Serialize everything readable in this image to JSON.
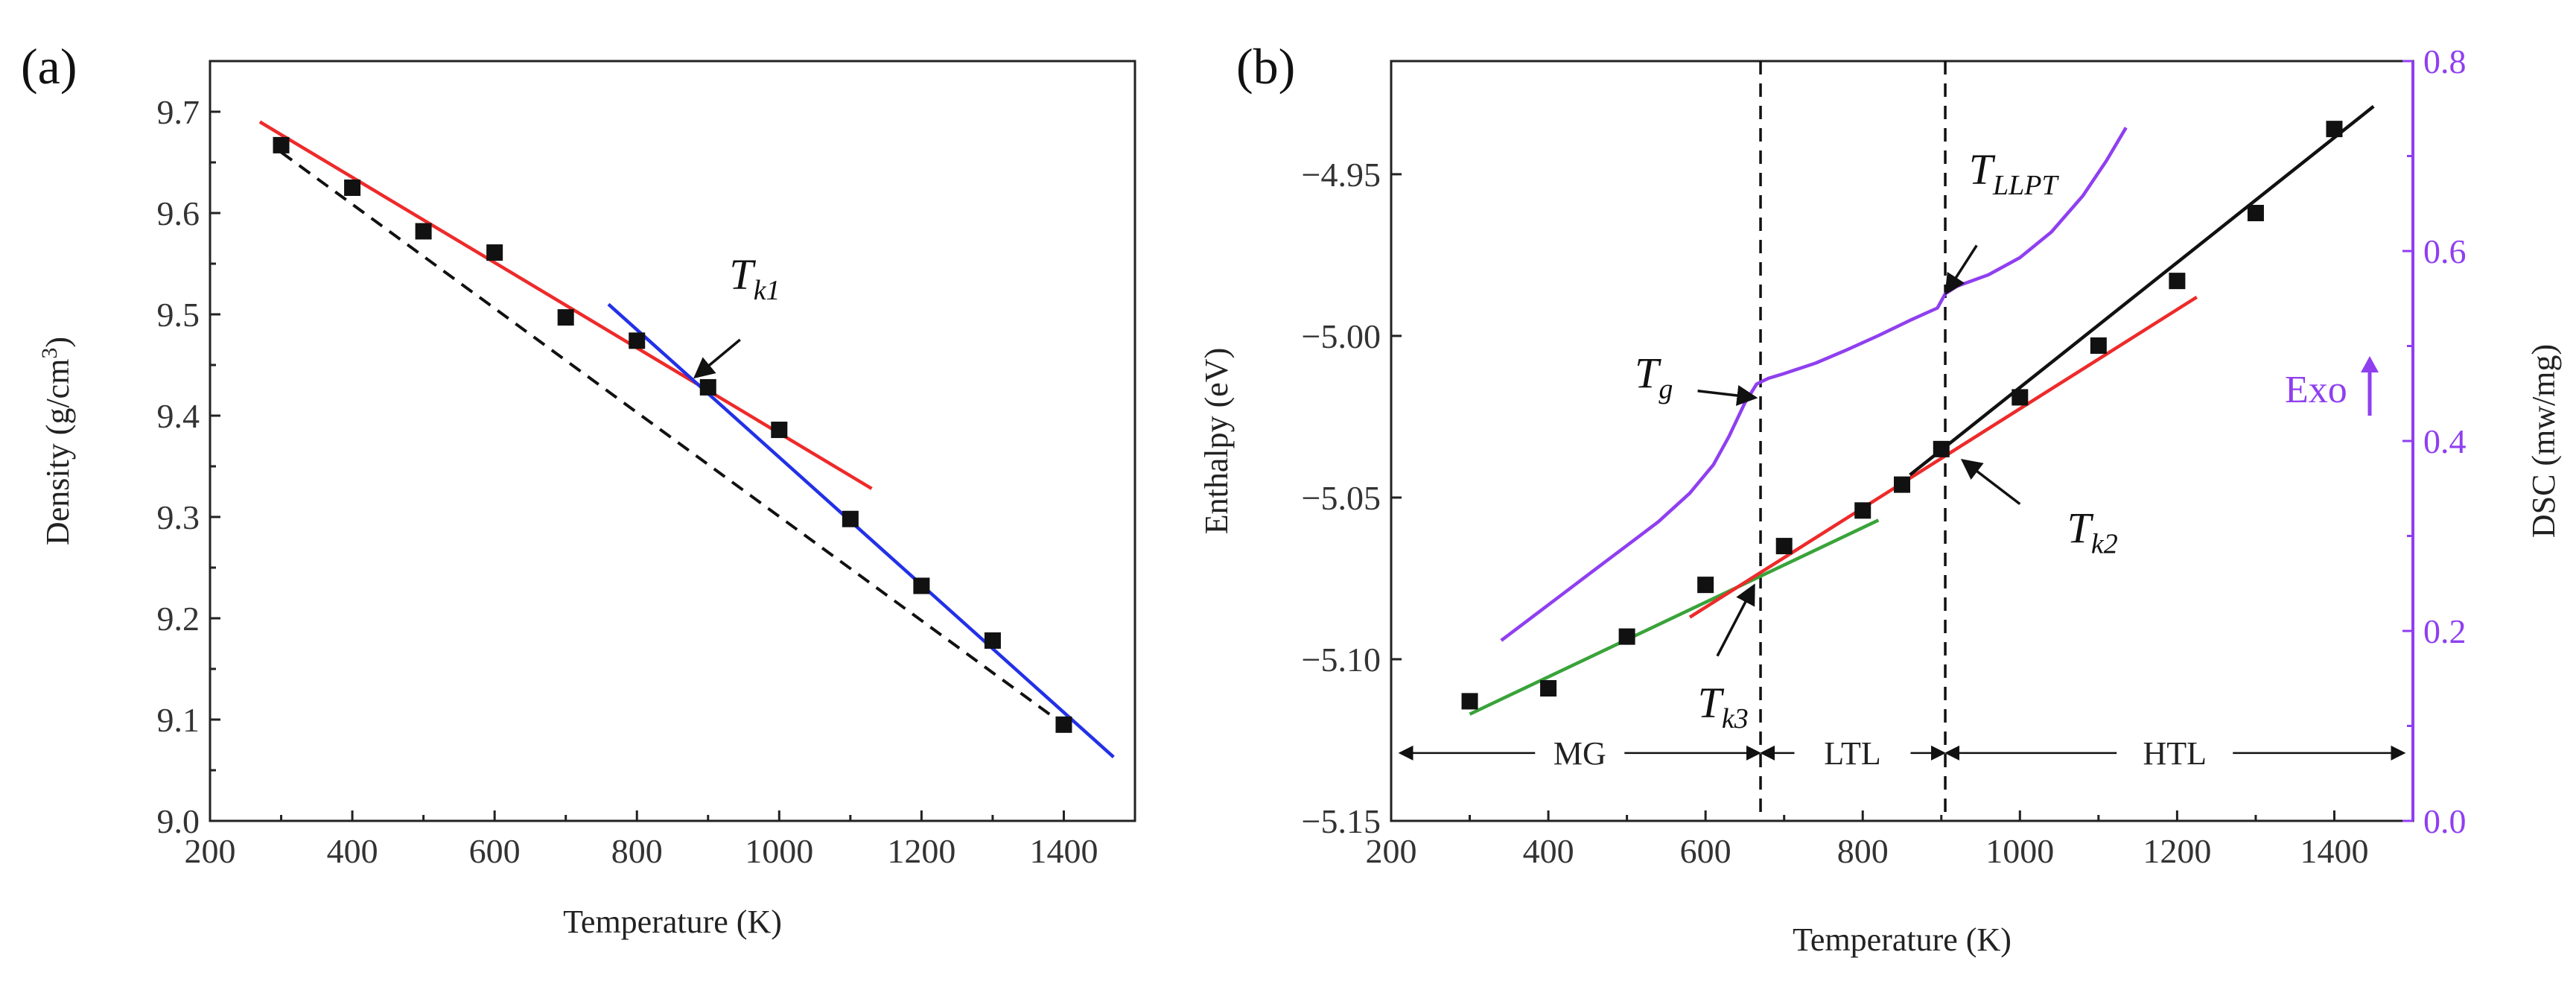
{
  "panels": {
    "a": {
      "label": "(a)"
    },
    "b": {
      "label": "(b)"
    }
  },
  "colors": {
    "red": "#ee2a2a",
    "blue": "#2231e6",
    "green": "#39a339",
    "black": "#111111",
    "purple": "#8f3ff0"
  },
  "chart_data": [
    {
      "id": "a",
      "type": "scatter",
      "title": "",
      "xlabel": "Temperature (K)",
      "ylabel_main": "Density (g/cm",
      "ylabel_sup": "3",
      "ylabel_end": ")",
      "xlim": [
        200,
        1500
      ],
      "ylim": [
        9.0,
        9.75
      ],
      "xticks": [
        200,
        400,
        600,
        800,
        1000,
        1200,
        1400
      ],
      "yticks": [
        9.0,
        9.1,
        9.2,
        9.3,
        9.4,
        9.5,
        9.6,
        9.7
      ],
      "ytick_labels": [
        "9.0",
        "9.1",
        "9.2",
        "9.3",
        "9.4",
        "9.5",
        "9.6",
        "9.7"
      ],
      "points": {
        "x": [
          300,
          400,
          500,
          600,
          700,
          800,
          900,
          1000,
          1100,
          1200,
          1300,
          1400
        ],
        "y": [
          9.667,
          9.625,
          9.582,
          9.561,
          9.497,
          9.474,
          9.428,
          9.386,
          9.298,
          9.232,
          9.178,
          9.095
        ]
      },
      "fit_lines": [
        {
          "name": "red-fit",
          "color": "#ee2a2a",
          "dash": false,
          "x": [
            270,
            1130
          ],
          "y": [
            9.69,
            9.328
          ]
        },
        {
          "name": "blue-fit",
          "color": "#2231e6",
          "dash": false,
          "x": [
            760,
            1470
          ],
          "y": [
            9.51,
            9.063
          ]
        },
        {
          "name": "dashed-reference",
          "color": "#111111",
          "dash": true,
          "x": [
            300,
            1400
          ],
          "y": [
            9.66,
            9.095
          ]
        }
      ],
      "annotations": [
        {
          "main": "T",
          "sub": "k1",
          "x": 930,
          "y": 9.525,
          "arrow_from": [
            945,
            9.475
          ],
          "arrow_to": [
            885,
            9.44
          ]
        }
      ]
    },
    {
      "id": "b",
      "type": "scatter",
      "title": "",
      "xlabel": "Temperature (K)",
      "ylabel_left": "Enthalpy (eV)",
      "ylabel_right": "DSC (mw/mg)",
      "xlim": [
        200,
        1500
      ],
      "ylim": [
        -5.15,
        -4.915
      ],
      "y2lim": [
        0.0,
        0.8
      ],
      "xticks": [
        200,
        400,
        600,
        800,
        1000,
        1200,
        1400
      ],
      "yticks": [
        -5.15,
        -5.1,
        -5.05,
        -5.0,
        -4.95
      ],
      "ytick_labels": [
        "−5.15",
        "−5.10",
        "−5.05",
        "−5.00",
        "−4.95"
      ],
      "y2ticks": [
        0.0,
        0.2,
        0.4,
        0.6,
        0.8
      ],
      "y2tick_labels": [
        "0.0",
        "0.2",
        "0.4",
        "0.6",
        "0.8"
      ],
      "points": {
        "x": [
          300,
          400,
          500,
          600,
          700,
          800,
          850,
          900,
          1000,
          1100,
          1200,
          1300,
          1400
        ],
        "y": [
          -5.113,
          -5.109,
          -5.093,
          -5.077,
          -5.065,
          -5.054,
          -5.046,
          -5.035,
          -5.019,
          -5.003,
          -4.983,
          -4.962,
          -4.936
        ]
      },
      "fit_lines": [
        {
          "name": "green-fit",
          "color": "#39a339",
          "x": [
            300,
            820
          ],
          "y": [
            -5.117,
            -5.057
          ]
        },
        {
          "name": "red-fit",
          "color": "#ee2a2a",
          "x": [
            580,
            1225
          ],
          "y": [
            -5.087,
            -4.988
          ]
        },
        {
          "name": "black-fit",
          "color": "#111111",
          "x": [
            860,
            1450
          ],
          "y": [
            -5.043,
            -4.929
          ]
        }
      ],
      "dsc_curve": {
        "name": "DSC",
        "color": "#8f3ff0",
        "x": [
          340,
          380,
          420,
          460,
          500,
          540,
          580,
          610,
          630,
          650,
          665,
          680,
          700,
          740,
          780,
          820,
          860,
          895,
          905,
          920,
          960,
          1000,
          1040,
          1080,
          1110,
          1135
        ],
        "y": [
          0.19,
          0.215,
          0.24,
          0.265,
          0.29,
          0.315,
          0.345,
          0.375,
          0.405,
          0.44,
          0.46,
          0.466,
          0.471,
          0.482,
          0.496,
          0.511,
          0.527,
          0.54,
          0.555,
          0.563,
          0.575,
          0.593,
          0.62,
          0.658,
          0.695,
          0.73
        ]
      },
      "dashed_verticals": [
        670,
        905
      ],
      "regions": [
        {
          "label": "MG",
          "from": 210,
          "to": 670,
          "label_x": 440
        },
        {
          "label": "LTL",
          "from": 670,
          "to": 905,
          "label_x": 787
        },
        {
          "label": "HTL",
          "from": 905,
          "to": 1490,
          "label_x": 1197
        }
      ],
      "region_y": -5.129,
      "annotations": [
        {
          "main": "T",
          "sub": "LLPT",
          "x": 935,
          "y": -4.953,
          "arrow_from": [
            945,
            -4.972
          ],
          "arrow_to": [
            908,
            -4.986
          ]
        },
        {
          "main": "T",
          "sub": "g",
          "x": 510,
          "y": -5.016,
          "arrow_from": [
            590,
            -5.017
          ],
          "arrow_to": [
            660,
            -5.019
          ]
        },
        {
          "main": "T",
          "sub": "k2",
          "x": 1060,
          "y": -5.064,
          "arrow_from": [
            1000,
            -5.052
          ],
          "arrow_to": [
            930,
            -5.039
          ]
        },
        {
          "main": "T",
          "sub": "k3",
          "x": 590,
          "y": -5.118,
          "arrow_from": [
            615,
            -5.099
          ],
          "arrow_to": [
            660,
            -5.078
          ]
        }
      ],
      "exo": {
        "label": "Exo"
      }
    }
  ]
}
